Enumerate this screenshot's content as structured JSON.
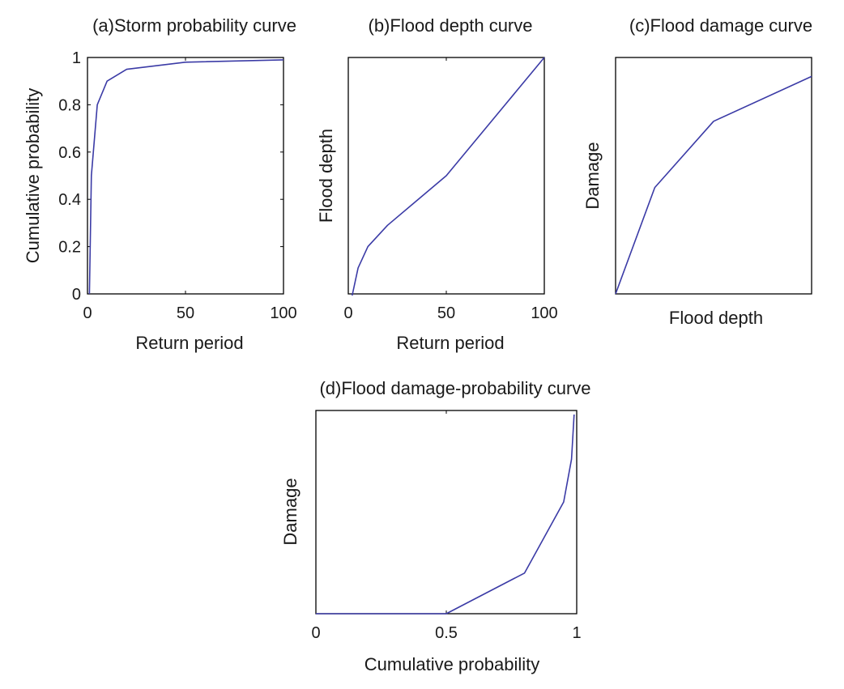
{
  "chart_data": [
    {
      "id": "a",
      "type": "line",
      "title": "(a)Storm probability curve",
      "xlabel": "Return period",
      "ylabel": "Cumulative probability",
      "xlim": [
        0,
        100
      ],
      "ylim": [
        0,
        1
      ],
      "xticks": [
        0,
        50,
        100
      ],
      "xtick_labels": [
        "0",
        "50",
        "100"
      ],
      "yticks": [
        0,
        0.2,
        0.4,
        0.6,
        0.8,
        1
      ],
      "ytick_labels": [
        "0",
        "0.2",
        "0.4",
        "0.6",
        "0.8",
        "1"
      ],
      "grid": false,
      "series": [
        {
          "color": "#3b3ba6",
          "x": [
            1,
            2,
            5,
            10,
            20,
            50,
            100
          ],
          "y": [
            0,
            0.5,
            0.8,
            0.9,
            0.95,
            0.98,
            0.99
          ]
        }
      ]
    },
    {
      "id": "b",
      "type": "line",
      "title": "(b)Flood depth curve",
      "xlabel": "Return period",
      "ylabel": "Flood depth",
      "xlim": [
        0,
        100
      ],
      "ylim": [
        0,
        1
      ],
      "xticks": [
        0,
        50,
        100
      ],
      "xtick_labels": [
        "0",
        "50",
        "100"
      ],
      "yticks": [],
      "ytick_labels": [],
      "grid": false,
      "series": [
        {
          "color": "#3b3ba6",
          "x": [
            2,
            5,
            10,
            20,
            50,
            100
          ],
          "y": [
            -0.01,
            0.11,
            0.2,
            0.29,
            0.5,
            1.0
          ]
        }
      ]
    },
    {
      "id": "c",
      "type": "line",
      "title": "(c)Flood damage curve",
      "xlabel": "Flood depth",
      "ylabel": "Damage",
      "xlim": [
        0,
        1
      ],
      "ylim": [
        0,
        1
      ],
      "xticks": [],
      "xtick_labels": [],
      "yticks": [],
      "ytick_labels": [],
      "grid": false,
      "series": [
        {
          "color": "#3b3ba6",
          "x": [
            0,
            0.2,
            0.5,
            1.0
          ],
          "y": [
            0,
            0.45,
            0.73,
            0.92
          ]
        }
      ]
    },
    {
      "id": "d",
      "type": "line",
      "title": "(d)Flood damage-probability curve",
      "xlabel": "Cumulative probability",
      "ylabel": "Damage",
      "xlim": [
        0,
        1
      ],
      "ylim": [
        0,
        1
      ],
      "xticks": [
        0,
        0.5,
        1
      ],
      "xtick_labels": [
        "0",
        "0.5",
        "1"
      ],
      "yticks": [],
      "ytick_labels": [],
      "grid": false,
      "series": [
        {
          "color": "#3b3ba6",
          "x": [
            0,
            0.5,
            0.8,
            0.95,
            0.98,
            0.99
          ],
          "y": [
            0,
            0,
            0.2,
            0.55,
            0.76,
            0.98
          ]
        }
      ]
    }
  ]
}
